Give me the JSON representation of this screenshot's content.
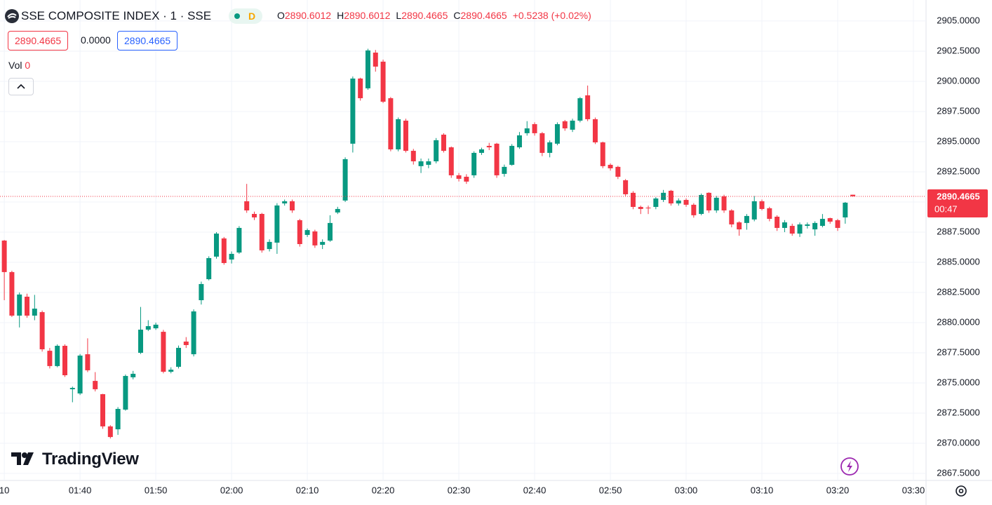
{
  "chart_data": {
    "type": "candlestick",
    "title": "SSE COMPOSITE INDEX · 1 · SSE",
    "interval_badge": "D",
    "change": "+0.5238 (+0.02%)",
    "quote": {
      "bid": "2890.4665",
      "spread": "0.0000",
      "ask": "2890.4665"
    },
    "volume_label": "Vol",
    "volume": 0,
    "countdown": "00:47",
    "brand": "TradingView",
    "ohlc_letters": [
      "O",
      "H",
      "L",
      "C"
    ],
    "up_color": "#089981",
    "down_color": "#f23645",
    "grid": true,
    "x": [
      "01:30",
      "01:31",
      "01:32",
      "01:33",
      "01:34",
      "01:35",
      "01:36",
      "01:37",
      "01:38",
      "01:39",
      "01:40",
      "01:41",
      "01:42",
      "01:43",
      "01:44",
      "01:45",
      "01:46",
      "01:47",
      "01:48",
      "01:49",
      "01:50",
      "01:51",
      "01:52",
      "01:53",
      "01:54",
      "01:55",
      "01:56",
      "01:57",
      "01:58",
      "01:59",
      "02:00",
      "02:01",
      "02:02",
      "02:03",
      "02:04",
      "02:05",
      "02:06",
      "02:07",
      "02:08",
      "02:09",
      "02:10",
      "02:11",
      "02:12",
      "02:13",
      "02:14",
      "02:15",
      "02:16",
      "02:17",
      "02:18",
      "02:19",
      "02:20",
      "02:21",
      "02:22",
      "02:23",
      "02:24",
      "02:25",
      "02:26",
      "02:27",
      "02:28",
      "02:29",
      "02:30",
      "02:31",
      "02:32",
      "02:33",
      "02:34",
      "02:35",
      "02:36",
      "02:37",
      "02:38",
      "02:39",
      "02:40",
      "02:41",
      "02:42",
      "02:43",
      "02:44",
      "02:45",
      "02:46",
      "02:47",
      "02:48",
      "02:49",
      "02:50",
      "02:51",
      "02:52",
      "02:53",
      "02:54",
      "02:55",
      "02:56",
      "02:57",
      "02:58",
      "02:59",
      "03:00",
      "03:01",
      "03:02",
      "03:03",
      "03:04",
      "03:05",
      "03:06",
      "03:07",
      "03:08",
      "03:09",
      "03:10",
      "03:11",
      "03:12",
      "03:13",
      "03:14",
      "03:15",
      "03:16",
      "03:17",
      "03:18",
      "03:19",
      "03:20",
      "03:21",
      "03:22"
    ],
    "open": [
      2886.8,
      2884.19,
      2880.58,
      2882.15,
      2880.58,
      2880.87,
      2877.67,
      2876.4,
      2878.08,
      2874.48,
      2874.13,
      2877.38,
      2875.17,
      2874.07,
      2871.4,
      2871.16,
      2872.79,
      2875.47,
      2877.5,
      2879.42,
      2879.53,
      2879.24,
      2875.93,
      2876.34,
      2878.43,
      2877.38,
      2881.86,
      2883.6,
      2885.47,
      2886.98,
      2885.23,
      2885.81,
      2890.06,
      2889.01,
      2889.01,
      2886.1,
      2886.63,
      2889.88,
      2890.06,
      2888.49,
      2887.27,
      2887.56,
      2886.45,
      2886.8,
      2889.13,
      2890.12,
      2894.83,
      2900.23,
      2899.42,
      2902.38,
      2901.63,
      2898.6,
      2894.36,
      2896.74,
      2894.24,
      2892.97,
      2893.08,
      2893.37,
      2895.58,
      2894.53,
      2892.21,
      2892.09,
      2892.21,
      2894.07,
      2894.65,
      2894.83,
      2892.33,
      2893.08,
      2894.53,
      2895.7,
      2896.45,
      2895.7,
      2894.07,
      2894.83,
      2896.69,
      2895.99,
      2896.74,
      2898.84,
      2896.86,
      2894.94,
      2893.08,
      2892.91,
      2891.8,
      2890.76,
      2889.59,
      2889.53,
      2889.59,
      2890.17,
      2890.93,
      2889.88,
      2890.17,
      2889.77,
      2889.01,
      2890.76,
      2889.3,
      2890.47,
      2889.3,
      2888.31,
      2888.26,
      2888.55,
      2890.06,
      2889.48,
      2888.78,
      2887.85,
      2888.02,
      2887.38,
      2888.02,
      2887.73,
      2888.02,
      2888.66,
      2888.49,
      2888.72,
      2890.6012
    ],
    "high": [
      2886.85,
      2884.3,
      2882.5,
      2882.4,
      2882.3,
      2881.0,
      2877.9,
      2878.2,
      2878.2,
      2874.7,
      2877.4,
      2878.7,
      2875.9,
      2874.1,
      2871.5,
      2873.0,
      2875.7,
      2876.0,
      2881.3,
      2880.2,
      2880.0,
      2879.4,
      2876.3,
      2878.1,
      2878.8,
      2881.1,
      2883.4,
      2885.5,
      2887.5,
      2887.1,
      2885.9,
      2888.0,
      2891.5,
      2889.2,
      2889.1,
      2886.9,
      2889.9,
      2890.2,
      2890.2,
      2888.6,
      2887.8,
      2887.7,
      2886.9,
      2888.9,
      2889.6,
      2893.7,
      2900.4,
      2900.3,
      2902.7,
      2902.6,
      2901.8,
      2898.7,
      2897.0,
      2896.9,
      2894.4,
      2893.6,
      2893.6,
      2895.3,
      2895.7,
      2894.6,
      2892.4,
      2892.3,
      2894.2,
      2894.5,
      2894.9,
      2894.9,
      2893.1,
      2894.8,
      2895.8,
      2896.7,
      2896.6,
      2895.8,
      2895.1,
      2896.6,
      2896.8,
      2896.9,
      2898.7,
      2899.65,
      2897.0,
      2895.0,
      2893.2,
      2893.0,
      2891.9,
      2890.9,
      2889.7,
      2889.7,
      2890.4,
      2891.0,
      2891.0,
      2890.3,
      2890.3,
      2889.9,
      2890.7,
      2890.8,
      2890.5,
      2890.6,
      2889.4,
      2888.4,
      2889.0,
      2890.5,
      2890.2,
      2889.6,
      2888.9,
      2888.5,
      2888.2,
      2888.3,
      2888.3,
      2888.4,
      2889.0,
      2888.7,
      2888.6,
      2890.0,
      2890.6012
    ],
    "low": [
      2881.86,
      2880.47,
      2879.6,
      2880.4,
      2880.2,
      2877.6,
      2876.2,
      2876.3,
      2875.5,
      2873.4,
      2874.0,
      2875.9,
      2874.3,
      2871.2,
      2870.4,
      2870.7,
      2872.7,
      2875.3,
      2877.4,
      2879.3,
      2879.4,
      2875.8,
      2875.8,
      2876.2,
      2877.9,
      2877.2,
      2881.5,
      2883.5,
      2885.3,
      2884.8,
      2884.9,
      2885.7,
      2889.1,
      2888.5,
      2885.8,
      2885.9,
      2885.7,
      2889.7,
      2889.1,
      2886.3,
      2887.1,
      2886.2,
      2886.1,
      2886.7,
      2889.0,
      2890.0,
      2894.1,
      2898.4,
      2899.3,
      2900.8,
      2898.2,
      2894.2,
      2894.2,
      2894.1,
      2893.1,
      2892.4,
      2892.8,
      2893.2,
      2894.1,
      2892.0,
      2891.7,
      2891.5,
      2892.0,
      2893.9,
      2894.3,
      2892.0,
      2892.1,
      2893.0,
      2894.4,
      2895.5,
      2895.5,
      2893.8,
      2893.7,
      2894.7,
      2895.9,
      2895.8,
      2896.6,
      2896.7,
      2894.8,
      2892.8,
      2892.6,
      2891.9,
      2890.5,
      2889.4,
      2889.0,
      2889.0,
      2889.4,
      2890.0,
      2889.7,
      2889.7,
      2889.6,
      2888.7,
      2888.9,
      2889.1,
      2889.1,
      2889.1,
      2887.9,
      2887.2,
      2887.7,
      2888.4,
      2889.3,
      2888.4,
      2887.6,
      2887.5,
      2887.2,
      2887.1,
      2887.8,
      2887.2,
      2887.9,
      2888.2,
      2887.6,
      2888.2,
      2890.4665
    ],
    "close": [
      2884.19,
      2880.58,
      2882.33,
      2880.58,
      2881.16,
      2877.79,
      2876.4,
      2878.08,
      2875.64,
      2874.59,
      2877.27,
      2876.05,
      2874.48,
      2871.4,
      2870.52,
      2872.85,
      2875.58,
      2875.76,
      2879.42,
      2879.71,
      2879.83,
      2875.93,
      2876.1,
      2877.91,
      2878.14,
      2880.93,
      2883.2,
      2885.35,
      2887.38,
      2884.94,
      2885.7,
      2887.85,
      2889.3,
      2888.72,
      2885.99,
      2886.69,
      2889.71,
      2890.06,
      2889.3,
      2886.51,
      2887.67,
      2886.4,
      2886.69,
      2888.26,
      2889.42,
      2893.55,
      2900.23,
      2898.6,
      2902.56,
      2901.22,
      2898.31,
      2894.36,
      2896.86,
      2894.24,
      2893.37,
      2893.37,
      2893.37,
      2895.12,
      2894.24,
      2892.21,
      2891.92,
      2891.69,
      2894.07,
      2894.36,
      2894.53,
      2892.21,
      2892.91,
      2894.65,
      2895.52,
      2896.1,
      2895.7,
      2894.07,
      2894.94,
      2896.45,
      2896.1,
      2896.74,
      2898.6,
      2896.86,
      2894.94,
      2892.97,
      2892.79,
      2892.09,
      2890.64,
      2889.59,
      2889.42,
      2889.48,
      2890.29,
      2890.76,
      2889.88,
      2890.12,
      2889.77,
      2888.9,
      2890.58,
      2889.3,
      2890.35,
      2889.3,
      2888.14,
      2887.73,
      2888.84,
      2890.06,
      2889.42,
      2888.6,
      2887.85,
      2888.31,
      2887.38,
      2888.14,
      2888.14,
      2888.26,
      2888.6,
      2888.37,
      2887.85,
      2889.94,
      2890.4665
    ],
    "xlim": [
      "01:29:26",
      "03:31:40"
    ],
    "xticks": [
      {
        "value": "01:30",
        "label": "10"
      },
      "01:40",
      "01:50",
      "02:00",
      "02:10",
      "02:20",
      "02:30",
      "02:40",
      "02:50",
      "03:00",
      "03:10",
      "03:20",
      "03:30"
    ],
    "ylim": [
      2866.92,
      2906.74
    ],
    "yticks": [
      {
        "value": 2867.5,
        "label": "2867.5000"
      },
      {
        "value": 2870,
        "label": "2870.0000"
      },
      {
        "value": 2872.5,
        "label": "2872.5000"
      },
      {
        "value": 2875,
        "label": "2875.0000"
      },
      {
        "value": 2877.5,
        "label": "2877.5000"
      },
      {
        "value": 2880,
        "label": "2880.0000"
      },
      {
        "value": 2882.5,
        "label": "2882.5000"
      },
      {
        "value": 2885,
        "label": "2885.0000"
      },
      {
        "value": 2887.5,
        "label": "2887.5000"
      },
      {
        "value": 2890,
        "label": "2890.0000"
      },
      {
        "value": 2892.5,
        "label": "2892.5000"
      },
      {
        "value": 2895,
        "label": "2895.0000"
      },
      {
        "value": 2897.5,
        "label": "2897.5000"
      },
      {
        "value": 2900,
        "label": "2900.0000"
      },
      {
        "value": 2902.5,
        "label": "2902.5000"
      },
      {
        "value": 2905,
        "label": "2905.0000"
      }
    ]
  }
}
